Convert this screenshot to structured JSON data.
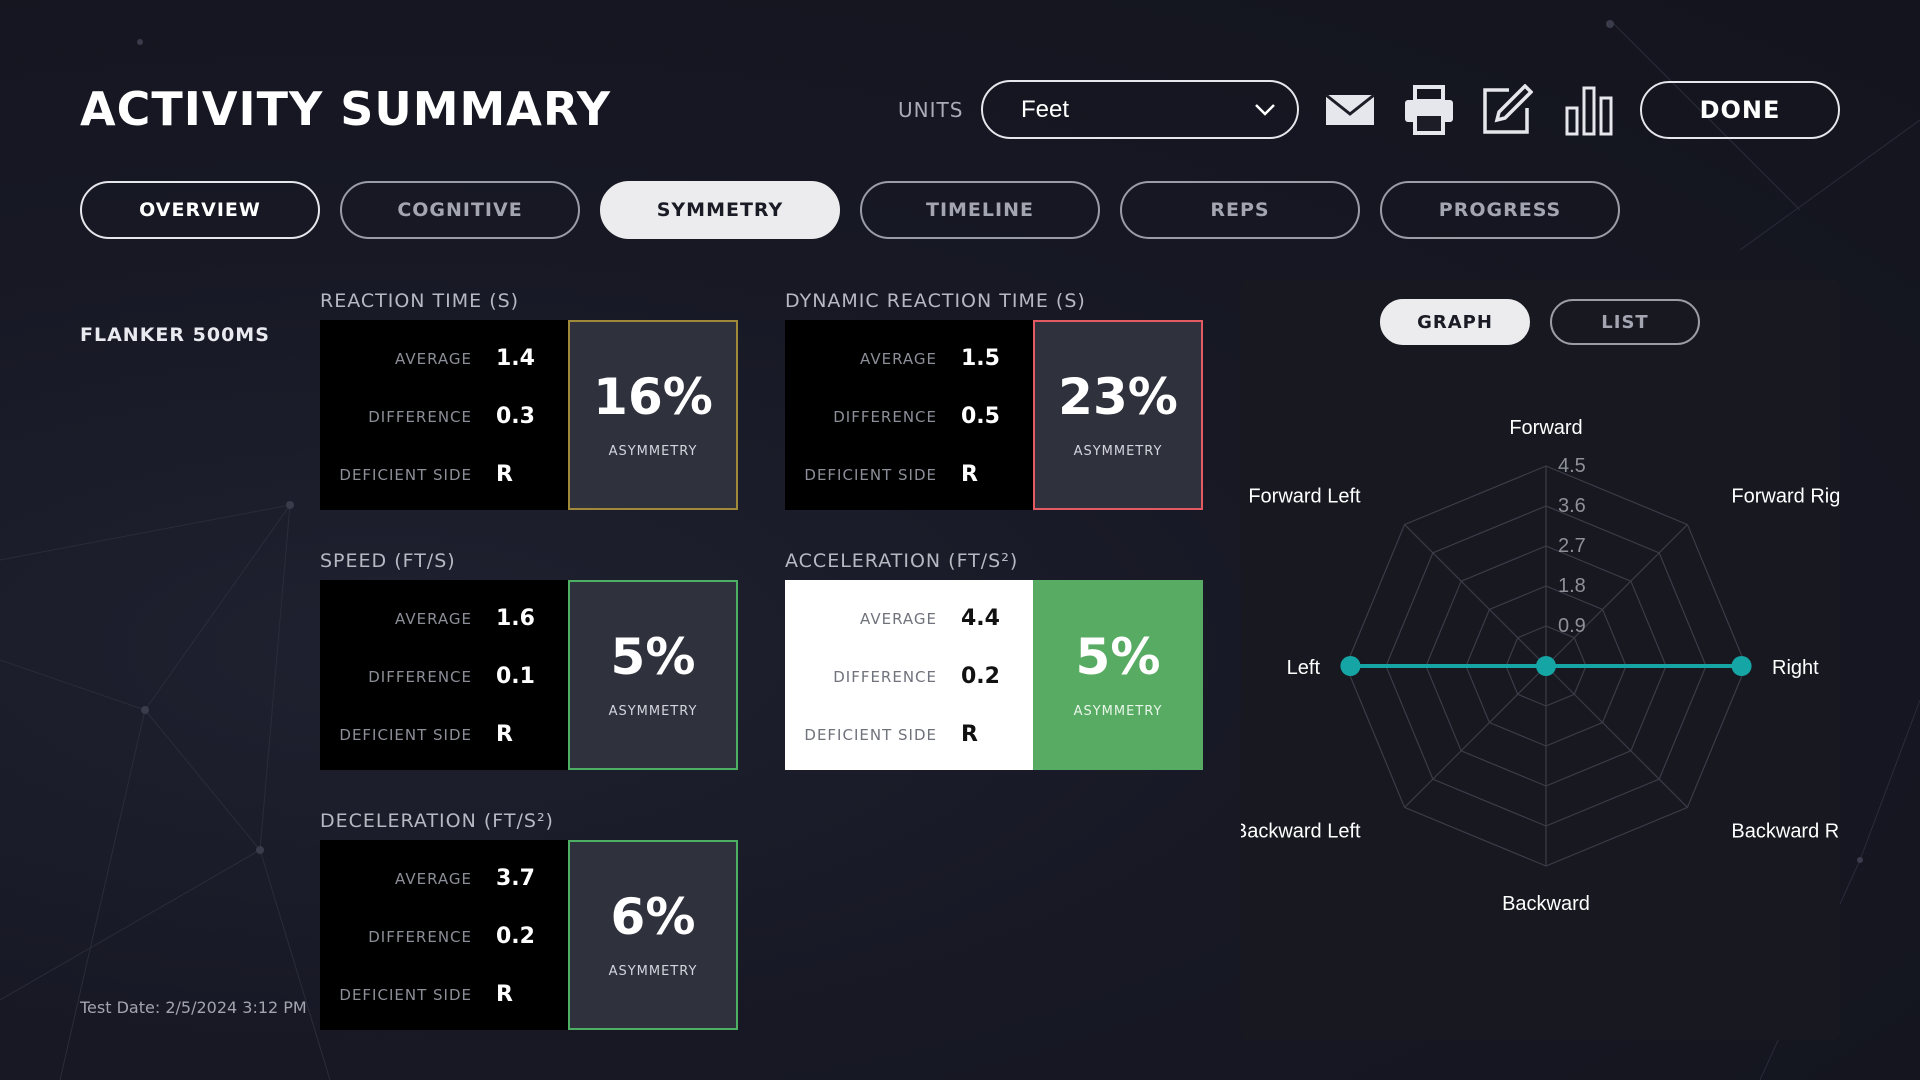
{
  "header": {
    "title": "ACTIVITY SUMMARY",
    "units_label": "UNITS",
    "units_value": "Feet",
    "icons": [
      "mail-icon",
      "print-icon",
      "edit-icon",
      "bar-chart-icon"
    ],
    "done_label": "DONE"
  },
  "tabs": [
    {
      "label": "OVERVIEW"
    },
    {
      "label": "COGNITIVE"
    },
    {
      "label": "SYMMETRY"
    },
    {
      "label": "TIMELINE"
    },
    {
      "label": "REPS"
    },
    {
      "label": "PROGRESS"
    }
  ],
  "active_tab": "SYMMETRY",
  "section": "FLANKER 500MS",
  "labels": {
    "average": "AVERAGE",
    "difference": "DIFFERENCE",
    "deficient_side": "DEFICIENT SIDE",
    "asymmetry": "ASYMMETRY"
  },
  "metrics": {
    "reaction_time": {
      "title": "REACTION TIME (S)",
      "average": "1.4",
      "difference": "0.3",
      "deficient_side": "R",
      "asymmetry": "16%"
    },
    "dynamic_reaction_time": {
      "title": "DYNAMIC REACTION TIME (S)",
      "average": "1.5",
      "difference": "0.5",
      "deficient_side": "R",
      "asymmetry": "23%"
    },
    "speed": {
      "title": "SPEED (FT/S)",
      "average": "1.6",
      "difference": "0.1",
      "deficient_side": "R",
      "asymmetry": "5%"
    },
    "acceleration": {
      "title": "ACCELERATION (FT/S²)",
      "average": "4.4",
      "difference": "0.2",
      "deficient_side": "R",
      "asymmetry": "5%"
    },
    "deceleration": {
      "title": "DECELERATION (FT/S²)",
      "average": "3.7",
      "difference": "0.2",
      "deficient_side": "R",
      "asymmetry": "6%"
    }
  },
  "colors": {
    "good": "#4caf63",
    "warning": "#a08a3a",
    "bad": "#e35a63",
    "series": "#16a5a5"
  },
  "test_date": "Test Date: 2/5/2024 3:12 PM",
  "graph_toggle": {
    "graph": "GRAPH",
    "list": "LIST",
    "active": "GRAPH"
  },
  "chart_data": {
    "type": "radar",
    "axes": [
      "Forward",
      "Forward Right",
      "Right",
      "Backward Right",
      "Backward",
      "Backward Left",
      "Left",
      "Forward Left"
    ],
    "ticks": [
      "0.9",
      "1.8",
      "2.7",
      "3.6",
      "4.5"
    ],
    "max": 4.5,
    "values": [
      0,
      0,
      4.4,
      0,
      0,
      0,
      4.4,
      0
    ]
  }
}
